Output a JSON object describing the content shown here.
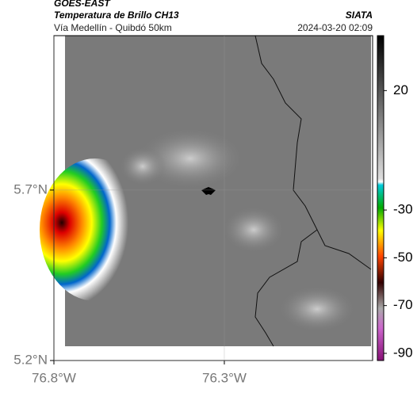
{
  "header": {
    "source": "GOES-EAST",
    "title": "Temperatura de Brillo CH13",
    "subtitle": "Vía Medellín - Quibdó 50km",
    "agency": "SIATA",
    "datetime": "2024-03-20 02:09"
  },
  "map": {
    "xlim": [
      -76.8,
      -75.865
    ],
    "ylim": [
      5.2,
      6.153
    ],
    "xticks": [
      {
        "value": -76.8,
        "label": "76.8°W"
      },
      {
        "value": -76.3,
        "label": "76.3°W"
      }
    ],
    "yticks": [
      {
        "value": 5.7,
        "label": "5.7°N"
      },
      {
        "value": 5.2,
        "label": "5.2°N"
      }
    ]
  },
  "colorbar": {
    "lim": [
      43,
      -93
    ],
    "ticks": [
      20,
      -30,
      -50,
      -70,
      -90
    ]
  }
}
